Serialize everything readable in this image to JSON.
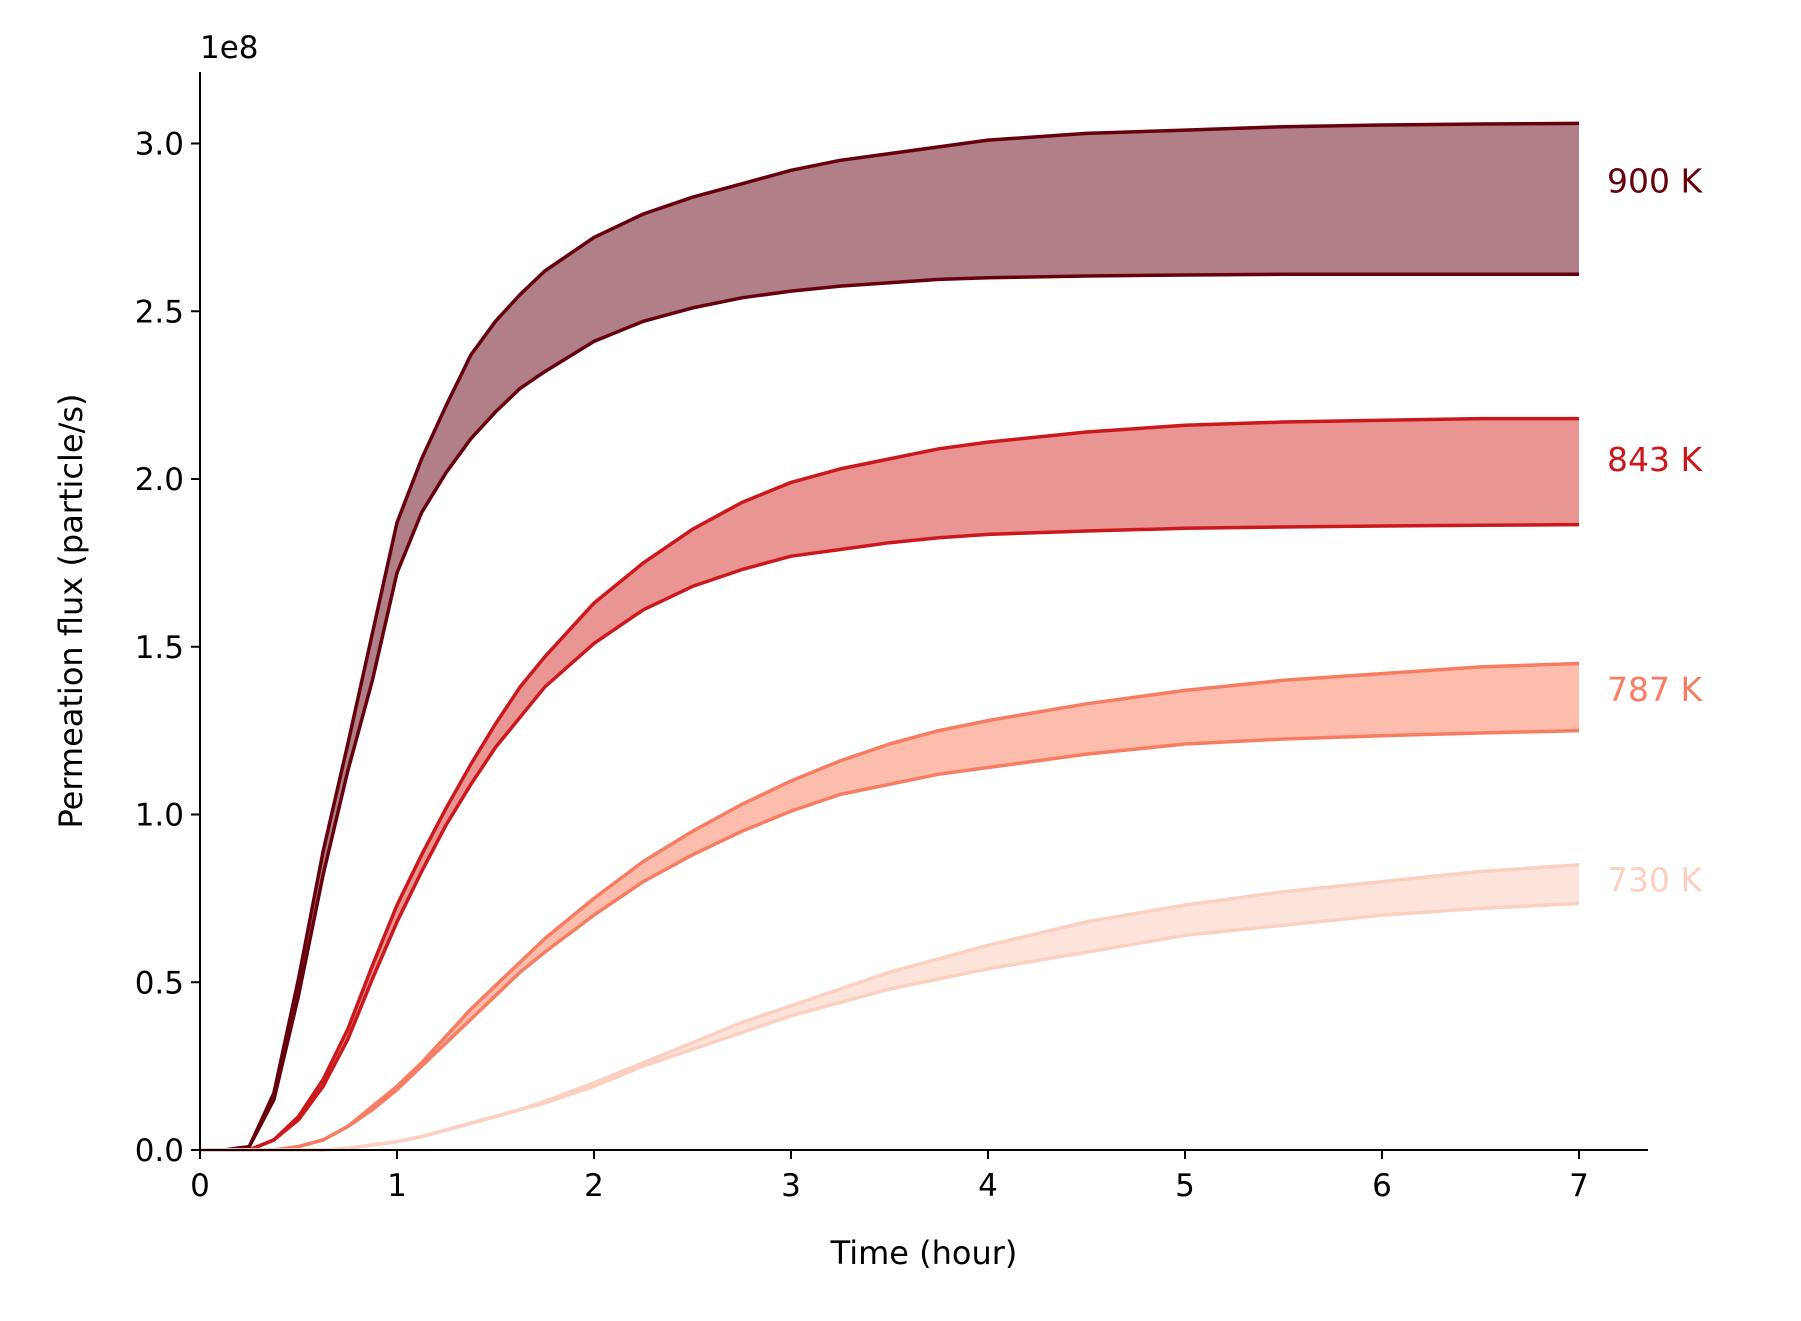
{
  "chart_data": {
    "type": "area",
    "title": "",
    "xlabel": "Time (hour)",
    "ylabel": "Permeation flux (particle/s)",
    "y_exponent_label": "1e8",
    "y_scale": 100000000,
    "xlim": [
      0,
      7.35
    ],
    "ylim": [
      0,
      3.22
    ],
    "x_ticks": [
      0,
      1,
      2,
      3,
      4,
      5,
      6,
      7
    ],
    "x_tick_labels": [
      "0",
      "1",
      "2",
      "3",
      "4",
      "5",
      "6",
      "7"
    ],
    "y_ticks": [
      0,
      0.5,
      1.0,
      1.5,
      2.0,
      2.5,
      3.0
    ],
    "y_tick_labels": [
      "0.0",
      "0.5",
      "1.0",
      "1.5",
      "2.0",
      "2.5",
      "3.0"
    ],
    "x": [
      0,
      0.125,
      0.25,
      0.375,
      0.5,
      0.625,
      0.75,
      0.875,
      1.0,
      1.125,
      1.25,
      1.375,
      1.5,
      1.625,
      1.75,
      2.0,
      2.25,
      2.5,
      2.75,
      3.0,
      3.25,
      3.5,
      3.75,
      4.0,
      4.5,
      5.0,
      5.5,
      6.0,
      6.5,
      7.0
    ],
    "series": [
      {
        "name": "900 K",
        "label": "900 K",
        "color": "#67000d",
        "fill": "#b07f87",
        "upper": [
          0,
          0,
          0.01,
          0.17,
          0.51,
          0.89,
          1.21,
          1.54,
          1.87,
          2.06,
          2.22,
          2.37,
          2.47,
          2.55,
          2.62,
          2.72,
          2.79,
          2.84,
          2.88,
          2.92,
          2.95,
          2.97,
          2.99,
          3.01,
          3.03,
          3.04,
          3.05,
          3.055,
          3.058,
          3.06
        ],
        "lower": [
          0,
          0,
          0.01,
          0.15,
          0.46,
          0.82,
          1.13,
          1.4,
          1.72,
          1.9,
          2.02,
          2.12,
          2.2,
          2.27,
          2.32,
          2.41,
          2.47,
          2.51,
          2.54,
          2.56,
          2.575,
          2.585,
          2.595,
          2.6,
          2.605,
          2.608,
          2.61,
          2.61,
          2.61,
          2.61
        ]
      },
      {
        "name": "843 K",
        "label": "843 K",
        "color": "#cb181d",
        "fill": "#e99593",
        "upper": [
          0,
          0,
          0,
          0.03,
          0.1,
          0.21,
          0.36,
          0.55,
          0.73,
          0.88,
          1.02,
          1.15,
          1.27,
          1.38,
          1.47,
          1.63,
          1.75,
          1.85,
          1.93,
          1.99,
          2.03,
          2.06,
          2.09,
          2.11,
          2.14,
          2.16,
          2.17,
          2.175,
          2.18,
          2.18
        ],
        "lower": [
          0,
          0,
          0,
          0.03,
          0.09,
          0.19,
          0.33,
          0.51,
          0.68,
          0.83,
          0.97,
          1.09,
          1.2,
          1.29,
          1.38,
          1.51,
          1.61,
          1.68,
          1.73,
          1.77,
          1.79,
          1.81,
          1.825,
          1.835,
          1.845,
          1.853,
          1.857,
          1.86,
          1.862,
          1.864
        ]
      },
      {
        "name": "787 K",
        "label": "787 K",
        "color": "#f67d61",
        "fill": "#fdbdad",
        "upper": [
          0,
          0,
          0,
          0,
          0.01,
          0.03,
          0.07,
          0.13,
          0.19,
          0.26,
          0.34,
          0.42,
          0.49,
          0.56,
          0.63,
          0.75,
          0.86,
          0.95,
          1.03,
          1.1,
          1.16,
          1.21,
          1.25,
          1.28,
          1.33,
          1.37,
          1.4,
          1.42,
          1.44,
          1.45
        ],
        "lower": [
          0,
          0,
          0,
          0,
          0.01,
          0.03,
          0.07,
          0.12,
          0.18,
          0.25,
          0.32,
          0.39,
          0.46,
          0.53,
          0.59,
          0.7,
          0.8,
          0.88,
          0.95,
          1.01,
          1.06,
          1.09,
          1.12,
          1.14,
          1.18,
          1.21,
          1.225,
          1.235,
          1.243,
          1.25
        ]
      },
      {
        "name": "730 K",
        "label": "730 K",
        "color": "#fcd0c1",
        "fill": "#fde4da",
        "upper": [
          0,
          0,
          0,
          0,
          0,
          0,
          0.005,
          0.015,
          0.025,
          0.04,
          0.06,
          0.08,
          0.1,
          0.12,
          0.145,
          0.2,
          0.26,
          0.32,
          0.38,
          0.43,
          0.48,
          0.53,
          0.57,
          0.61,
          0.68,
          0.73,
          0.77,
          0.8,
          0.83,
          0.85
        ],
        "lower": [
          0,
          0,
          0,
          0,
          0,
          0,
          0.005,
          0.015,
          0.025,
          0.04,
          0.06,
          0.08,
          0.1,
          0.12,
          0.14,
          0.19,
          0.25,
          0.3,
          0.35,
          0.4,
          0.44,
          0.48,
          0.51,
          0.54,
          0.59,
          0.64,
          0.67,
          0.7,
          0.72,
          0.735
        ]
      }
    ]
  }
}
